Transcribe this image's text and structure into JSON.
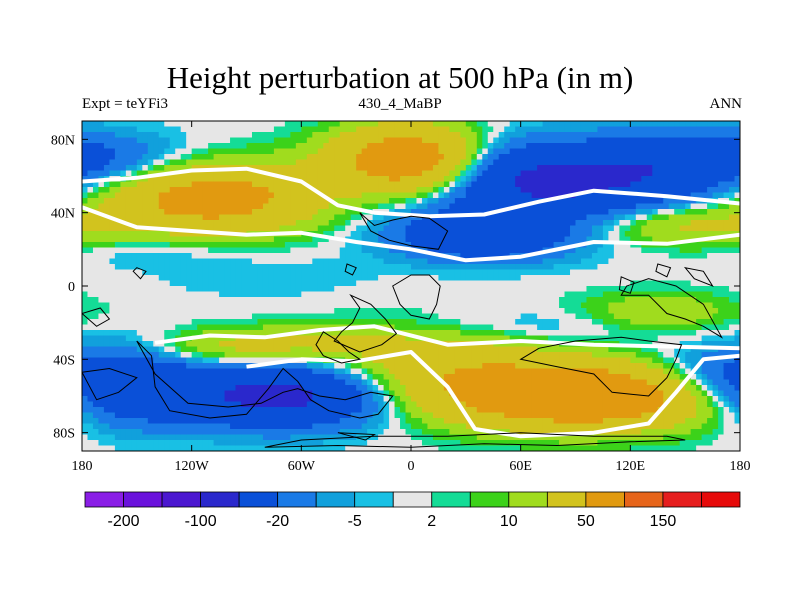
{
  "chart_data": {
    "type": "heatmap",
    "title": "Height perturbation at 500 hPa (in m)",
    "left_label": "Expt = teYFi3",
    "center_label": "430_4_MaBP",
    "right_label": "ANN",
    "xlim": [
      -180,
      180
    ],
    "ylim": [
      -90,
      90
    ],
    "x_ticks": [
      {
        "value": -180,
        "label": "180"
      },
      {
        "value": -120,
        "label": "120W"
      },
      {
        "value": -60,
        "label": "60W"
      },
      {
        "value": 0,
        "label": "0"
      },
      {
        "value": 60,
        "label": "60E"
      },
      {
        "value": 120,
        "label": "120E"
      },
      {
        "value": 180,
        "label": "180"
      }
    ],
    "y_ticks": [
      {
        "value": 80,
        "label": "80N"
      },
      {
        "value": 40,
        "label": "40N"
      },
      {
        "value": 0,
        "label": "0"
      },
      {
        "value": -40,
        "label": "40S"
      },
      {
        "value": -80,
        "label": "80S"
      }
    ],
    "colorbar": {
      "levels": [
        -200,
        -150,
        -100,
        -50,
        -20,
        -10,
        -5,
        -2,
        2,
        5,
        10,
        20,
        50,
        100,
        150,
        200
      ],
      "tick_labels": [
        {
          "boundary_index": 1,
          "label": "-200"
        },
        {
          "boundary_index": 3,
          "label": "-100"
        },
        {
          "boundary_index": 5,
          "label": "-20"
        },
        {
          "boundary_index": 7,
          "label": "-5"
        },
        {
          "boundary_index": 9,
          "label": "2"
        },
        {
          "boundary_index": 11,
          "label": "10"
        },
        {
          "boundary_index": 13,
          "label": "50"
        },
        {
          "boundary_index": 15,
          "label": "150"
        }
      ],
      "colors": [
        "#8a1ee6",
        "#6a12dc",
        "#4b17d0",
        "#2a28cc",
        "#0a50d8",
        "#1a7ae6",
        "#11a0dc",
        "#19c0e4",
        "#e6e6e6",
        "#14dc96",
        "#3cd21a",
        "#a0dc1e",
        "#d2c31e",
        "#e19a10",
        "#e6641a",
        "#e61e1e",
        "#e60a0a"
      ]
    },
    "anomaly_centers": [
      {
        "lon": -110,
        "lat": 48,
        "value": 70,
        "spread_lon": 42,
        "spread_lat": 13
      },
      {
        "lon": -20,
        "lat": 68,
        "value": 22,
        "spread_lon": 30,
        "spread_lat": 12
      },
      {
        "lon": 2,
        "lat": 68,
        "value": 75,
        "spread_lon": 26,
        "spread_lat": 13
      },
      {
        "lon": -158,
        "lat": 67,
        "value": -18,
        "spread_lon": 32,
        "spread_lat": 11
      },
      {
        "lon": 80,
        "lat": 58,
        "value": -60,
        "spread_lon": 60,
        "spread_lat": 14
      },
      {
        "lon": 150,
        "lat": 72,
        "value": -20,
        "spread_lon": 28,
        "spread_lat": 10
      },
      {
        "lon": 40,
        "lat": 28,
        "value": -40,
        "spread_lon": 36,
        "spread_lat": 10
      },
      {
        "lon": 150,
        "lat": 33,
        "value": 25,
        "spread_lon": 35,
        "spread_lat": 8
      },
      {
        "lon": -140,
        "lat": 18,
        "value": -6,
        "spread_lon": 30,
        "spread_lat": 6
      },
      {
        "lon": -80,
        "lat": 5,
        "value": -5,
        "spread_lon": 40,
        "spread_lat": 8
      },
      {
        "lon": -95,
        "lat": -33,
        "value": 25,
        "spread_lon": 30,
        "spread_lat": 7
      },
      {
        "lon": -40,
        "lat": -30,
        "value": 15,
        "spread_lon": 28,
        "spread_lat": 8
      },
      {
        "lon": -70,
        "lat": -60,
        "value": -60,
        "spread_lon": 42,
        "spread_lat": 12
      },
      {
        "lon": -155,
        "lat": -55,
        "value": -40,
        "spread_lon": 28,
        "spread_lat": 14
      },
      {
        "lon": 95,
        "lat": -60,
        "value": 95,
        "spread_lon": 50,
        "spread_lat": 12
      },
      {
        "lon": 20,
        "lat": -45,
        "value": 35,
        "spread_lon": 40,
        "spread_lat": 16
      },
      {
        "lon": 60,
        "lat": -22,
        "value": -10,
        "spread_lon": 60,
        "spread_lat": 7
      },
      {
        "lon": 160,
        "lat": -52,
        "value": -25,
        "spread_lon": 25,
        "spread_lat": 12
      },
      {
        "lon": 135,
        "lat": -15,
        "value": 20,
        "spread_lon": 30,
        "spread_lat": 8
      }
    ],
    "contour_zero_lines": [
      [
        [
          -180,
          57
        ],
        [
          -150,
          59
        ],
        [
          -120,
          63
        ],
        [
          -90,
          64
        ],
        [
          -60,
          57
        ],
        [
          -40,
          44
        ],
        [
          -20,
          40
        ],
        [
          10,
          38
        ],
        [
          40,
          39
        ],
        [
          70,
          46
        ],
        [
          100,
          52
        ],
        [
          140,
          49
        ],
        [
          180,
          45
        ]
      ],
      [
        [
          -180,
          43
        ],
        [
          -150,
          32
        ],
        [
          -120,
          30
        ],
        [
          -90,
          28
        ],
        [
          -60,
          29
        ],
        [
          -30,
          24
        ],
        [
          0,
          20
        ],
        [
          30,
          14
        ],
        [
          60,
          16
        ],
        [
          100,
          24
        ],
        [
          140,
          23
        ],
        [
          180,
          28
        ]
      ],
      [
        [
          -140,
          -31
        ],
        [
          -110,
          -27
        ],
        [
          -80,
          -28
        ],
        [
          -50,
          -24
        ],
        [
          -20,
          -22
        ],
        [
          20,
          -32
        ],
        [
          60,
          -30
        ],
        [
          100,
          -32
        ],
        [
          140,
          -33
        ],
        [
          180,
          -34
        ]
      ],
      [
        [
          -90,
          -44
        ],
        [
          -60,
          -40
        ],
        [
          -30,
          -41
        ],
        [
          0,
          -36
        ],
        [
          20,
          -55
        ],
        [
          35,
          -78
        ],
        [
          60,
          -82
        ],
        [
          100,
          -80
        ],
        [
          130,
          -75
        ],
        [
          145,
          -58
        ],
        [
          160,
          -40
        ],
        [
          180,
          -38
        ]
      ]
    ],
    "continent_outlines": [
      [
        [
          -28,
          40
        ],
        [
          -20,
          33
        ],
        [
          -10,
          36
        ],
        [
          0,
          38
        ],
        [
          10,
          37
        ],
        [
          20,
          30
        ],
        [
          15,
          20
        ],
        [
          0,
          22
        ],
        [
          -12,
          25
        ],
        [
          -22,
          30
        ],
        [
          -28,
          40
        ]
      ],
      [
        [
          -33,
          -5
        ],
        [
          -28,
          -12
        ],
        [
          -32,
          -20
        ],
        [
          -38,
          -25
        ],
        [
          -42,
          -30
        ],
        [
          -28,
          -36
        ],
        [
          -16,
          -32
        ],
        [
          -8,
          -26
        ],
        [
          -14,
          -18
        ],
        [
          -22,
          -10
        ],
        [
          -33,
          -5
        ]
      ],
      [
        [
          -10,
          0
        ],
        [
          0,
          6
        ],
        [
          10,
          6
        ],
        [
          16,
          0
        ],
        [
          14,
          -10
        ],
        [
          10,
          -18
        ],
        [
          0,
          -16
        ],
        [
          -6,
          -10
        ],
        [
          -10,
          0
        ]
      ],
      [
        [
          -48,
          -25
        ],
        [
          -40,
          -30
        ],
        [
          -34,
          -36
        ],
        [
          -28,
          -40
        ],
        [
          -38,
          -42
        ],
        [
          -48,
          -38
        ],
        [
          -52,
          -32
        ],
        [
          -48,
          -25
        ]
      ],
      [
        [
          -180,
          -15
        ],
        [
          -170,
          -12
        ],
        [
          -165,
          -18
        ],
        [
          -172,
          -22
        ],
        [
          -180,
          -15
        ]
      ],
      [
        [
          -150,
          -30
        ],
        [
          -142,
          -38
        ],
        [
          -140,
          -55
        ],
        [
          -132,
          -68
        ],
        [
          -110,
          -72
        ],
        [
          -90,
          -70
        ],
        [
          -78,
          -56
        ],
        [
          -70,
          -45
        ],
        [
          -62,
          -52
        ],
        [
          -55,
          -62
        ],
        [
          -45,
          -68
        ],
        [
          -28,
          -72
        ],
        [
          -18,
          -70
        ],
        [
          -10,
          -60
        ],
        [
          -22,
          -58
        ],
        [
          -36,
          -62
        ],
        [
          -50,
          -60
        ],
        [
          -62,
          -56
        ],
        [
          -70,
          -58
        ],
        [
          -82,
          -64
        ],
        [
          -100,
          -66
        ],
        [
          -122,
          -64
        ],
        [
          -140,
          -48
        ],
        [
          -150,
          -30
        ]
      ],
      [
        [
          -180,
          -47
        ],
        [
          -165,
          -45
        ],
        [
          -150,
          -50
        ],
        [
          -160,
          -58
        ],
        [
          -172,
          -62
        ],
        [
          -180,
          -47
        ]
      ],
      [
        [
          -80,
          -88
        ],
        [
          -40,
          -87
        ],
        [
          0,
          -88
        ],
        [
          40,
          -86
        ],
        [
          80,
          -87
        ],
        [
          120,
          -85
        ],
        [
          150,
          -84
        ],
        [
          140,
          -82
        ],
        [
          100,
          -82
        ],
        [
          60,
          -80
        ],
        [
          20,
          -82
        ],
        [
          -20,
          -82
        ],
        [
          -60,
          -84
        ],
        [
          -80,
          -88
        ]
      ],
      [
        [
          -40,
          -80
        ],
        [
          -20,
          -81
        ],
        [
          -25,
          -84
        ],
        [
          -40,
          -80
        ]
      ],
      [
        [
          60,
          -40
        ],
        [
          80,
          -44
        ],
        [
          100,
          -48
        ],
        [
          110,
          -58
        ],
        [
          130,
          -60
        ],
        [
          140,
          -50
        ],
        [
          145,
          -40
        ],
        [
          148,
          -32
        ],
        [
          130,
          -30
        ],
        [
          115,
          -28
        ],
        [
          90,
          -30
        ],
        [
          70,
          -34
        ],
        [
          60,
          -40
        ]
      ],
      [
        [
          115,
          -5
        ],
        [
          130,
          -5
        ],
        [
          140,
          -15
        ],
        [
          150,
          -18
        ],
        [
          160,
          -22
        ],
        [
          170,
          -28
        ],
        [
          160,
          -10
        ],
        [
          145,
          0
        ],
        [
          130,
          4
        ],
        [
          118,
          0
        ],
        [
          115,
          -5
        ]
      ],
      [
        [
          115,
          5
        ],
        [
          122,
          2
        ],
        [
          120,
          -4
        ],
        [
          114,
          -2
        ],
        [
          115,
          5
        ]
      ],
      [
        [
          135,
          12
        ],
        [
          142,
          10
        ],
        [
          140,
          5
        ],
        [
          134,
          8
        ],
        [
          135,
          12
        ]
      ],
      [
        [
          150,
          10
        ],
        [
          160,
          8
        ],
        [
          165,
          0
        ],
        [
          155,
          4
        ],
        [
          150,
          10
        ]
      ],
      [
        [
          -150,
          10
        ],
        [
          -145,
          8
        ],
        [
          -148,
          4
        ],
        [
          -152,
          8
        ],
        [
          -150,
          10
        ]
      ],
      [
        [
          -35,
          12
        ],
        [
          -30,
          10
        ],
        [
          -32,
          6
        ],
        [
          -36,
          8
        ],
        [
          -35,
          12
        ]
      ]
    ]
  }
}
